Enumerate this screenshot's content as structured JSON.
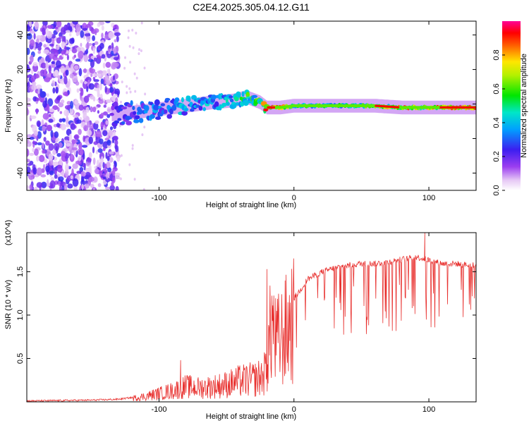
{
  "title": "C2E4.2025.305.04.12.G11",
  "chart_data": [
    {
      "type": "heatmap",
      "title": "C2E4.2025.305.04.12.G11",
      "xlabel": "Height of straight line (km)",
      "ylabel": "Frequency (Hz)",
      "xlim": [
        -198,
        135
      ],
      "ylim": [
        -50,
        48
      ],
      "xticks": [
        -100,
        0,
        100
      ],
      "xtick_labels": [
        "-100",
        "0",
        "100"
      ],
      "yticks": [
        -40,
        -20,
        0,
        20,
        40
      ],
      "ytick_labels": [
        "-40",
        "-20",
        "0",
        "20",
        "40"
      ],
      "colorbar": {
        "label": "Normalized spectral amplitude",
        "range": [
          0,
          1
        ],
        "ticks": [
          0.0,
          0.2,
          0.4,
          0.6,
          0.8
        ],
        "tick_labels": [
          "0.0",
          "0.2",
          "0.4",
          "0.6",
          "0.8"
        ],
        "colormap": "rainbow (white-violet-blue-cyan-green-yellow-red-magenta)"
      },
      "signal_track": {
        "description": "tone frequency vs height",
        "x": [
          -135,
          -120,
          -100,
          -80,
          -60,
          -45,
          -35,
          -25,
          -20,
          -10,
          0,
          20,
          40,
          60,
          80,
          100,
          120,
          135
        ],
        "frequency": [
          -6,
          -5,
          -3,
          -1,
          1,
          2,
          4,
          1,
          -2,
          -2,
          -1,
          -1,
          -1,
          -1,
          -2,
          -2,
          -2,
          -2
        ],
        "amplitude": [
          0.25,
          0.3,
          0.35,
          0.4,
          0.4,
          0.45,
          0.55,
          0.6,
          0.9,
          0.85,
          0.6,
          0.55,
          0.55,
          0.6,
          0.8,
          0.75,
          0.95,
          0.95
        ]
      },
      "noise_region_x": [
        -198,
        -130
      ]
    },
    {
      "type": "line",
      "xlabel": "Height of straight line (km)",
      "ylabel": "SNR (10 * v/v)",
      "y_multiplier": "(x10^4)",
      "xlim": [
        -198,
        135
      ],
      "ylim": [
        0,
        1.95
      ],
      "xticks": [
        -100,
        0,
        100
      ],
      "xtick_labels": [
        "-100",
        "0",
        "100"
      ],
      "yticks": [
        0.5,
        1.0,
        1.5
      ],
      "ytick_labels": [
        "0.5",
        "1.0",
        "1.5"
      ],
      "color": "#e8302e",
      "series": [
        {
          "name": "SNR",
          "x": [
            -198,
            -150,
            -130,
            -120,
            -110,
            -100,
            -90,
            -80,
            -70,
            -60,
            -50,
            -40,
            -30,
            -25,
            -22,
            -20,
            -18,
            -16,
            -14,
            -10,
            -5,
            0,
            5,
            10,
            20,
            30,
            40,
            50,
            60,
            70,
            80,
            85,
            90,
            95,
            100,
            110,
            120,
            130,
            135
          ],
          "y": [
            0.01,
            0.02,
            0.03,
            0.05,
            0.08,
            0.12,
            0.16,
            0.22,
            0.2,
            0.22,
            0.25,
            0.3,
            0.32,
            0.35,
            0.4,
            0.55,
            0.9,
            1.2,
            0.85,
            0.9,
            1.05,
            1.2,
            1.3,
            1.42,
            1.5,
            1.55,
            1.58,
            1.6,
            1.6,
            1.62,
            1.65,
            1.66,
            1.68,
            1.66,
            1.64,
            1.6,
            1.6,
            1.58,
            1.58
          ]
        }
      ],
      "spikes": [
        {
          "x": -84,
          "y": 0.48
        },
        {
          "x": -20,
          "y": 1.53
        },
        {
          "x": 97,
          "y": 1.95
        }
      ]
    }
  ]
}
